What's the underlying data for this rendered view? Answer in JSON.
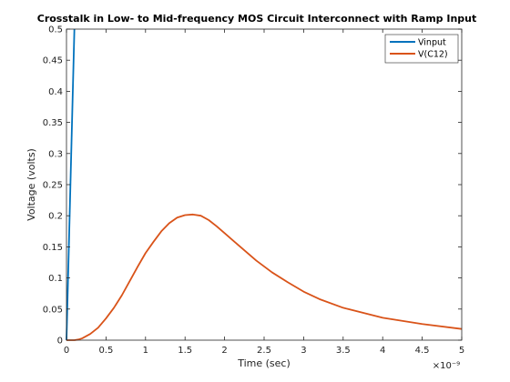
{
  "chart_data": {
    "type": "line",
    "title": "Crosstalk in Low- to Mid-frequency MOS Circuit Interconnect with Ramp Input",
    "xlabel": "Time (sec)",
    "ylabel": "Voltage (volts)",
    "xlim": [
      0,
      5e-09
    ],
    "ylim": [
      0,
      0.5
    ],
    "x_ticks": [
      0,
      5e-10,
      1e-09,
      1.5e-09,
      2e-09,
      2.5e-09,
      3e-09,
      3.5e-09,
      4e-09,
      4.5e-09,
      5e-09
    ],
    "x_tick_labels": [
      "0",
      "0.5",
      "1",
      "1.5",
      "2",
      "2.5",
      "3",
      "3.5",
      "4",
      "4.5",
      "5"
    ],
    "x_exponent_label": "×10⁻⁹",
    "y_ticks": [
      0,
      0.05,
      0.1,
      0.15,
      0.2,
      0.25,
      0.3,
      0.35,
      0.4,
      0.45,
      0.5
    ],
    "y_tick_labels": [
      "0",
      "0.05",
      "0.1",
      "0.15",
      "0.2",
      "0.25",
      "0.3",
      "0.35",
      "0.4",
      "0.45",
      "0.5"
    ],
    "grid": false,
    "legend_position": "top-right",
    "series": [
      {
        "name": "Vinput",
        "color": "#0072BD",
        "x": [
          0,
          1e-10
        ],
        "y": [
          0,
          0.5
        ]
      },
      {
        "name": "V(C12)",
        "color": "#D95319",
        "x": [
          0,
          1e-10,
          1.5e-10,
          2e-10,
          3e-10,
          4e-10,
          5e-10,
          6e-10,
          7e-10,
          8e-10,
          9e-10,
          1e-09,
          1.1e-09,
          1.2e-09,
          1.3e-09,
          1.4e-09,
          1.5e-09,
          1.6e-09,
          1.7e-09,
          1.8e-09,
          1.9e-09,
          2e-09,
          2.2e-09,
          2.4e-09,
          2.6e-09,
          2.8e-09,
          3e-09,
          3.2e-09,
          3.5e-09,
          4e-09,
          4.5e-09,
          5e-09
        ],
        "y": [
          0,
          0,
          0.001,
          0.003,
          0.01,
          0.02,
          0.035,
          0.052,
          0.072,
          0.095,
          0.118,
          0.14,
          0.158,
          0.175,
          0.188,
          0.197,
          0.201,
          0.202,
          0.2,
          0.193,
          0.183,
          0.172,
          0.15,
          0.128,
          0.109,
          0.093,
          0.078,
          0.066,
          0.052,
          0.036,
          0.026,
          0.018
        ]
      }
    ]
  }
}
